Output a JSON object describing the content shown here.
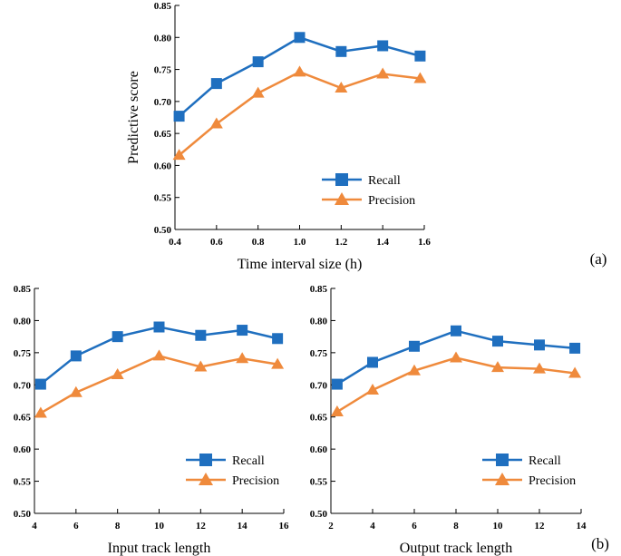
{
  "chart_data": [
    {
      "type": "line",
      "panel_label": "(a)",
      "xlabel": "Time interval size (h)",
      "ylabel": "Predictive score",
      "xlim": [
        0.4,
        1.6
      ],
      "ylim": [
        0.5,
        0.85
      ],
      "xticks": [
        "0.4",
        "0.6",
        "0.8",
        "1.0",
        "1.2",
        "1.4",
        "1.6"
      ],
      "yticks": [
        "0.50",
        "0.55",
        "0.60",
        "0.65",
        "0.70",
        "0.75",
        "0.80",
        "0.85"
      ],
      "x": [
        0.42,
        0.6,
        0.8,
        1.0,
        1.2,
        1.4,
        1.58
      ],
      "series": [
        {
          "name": "Recall",
          "marker": "square",
          "color": "#1f6fbf",
          "values": [
            0.677,
            0.728,
            0.762,
            0.8,
            0.778,
            0.787,
            0.771
          ]
        },
        {
          "name": "Precision",
          "marker": "triangle",
          "color": "#ef8a3c",
          "values": [
            0.616,
            0.665,
            0.713,
            0.746,
            0.721,
            0.743,
            0.736
          ]
        }
      ]
    },
    {
      "type": "line",
      "panel_label": "",
      "xlabel": "Input track length",
      "ylabel": "",
      "xlim": [
        4,
        16
      ],
      "ylim": [
        0.5,
        0.85
      ],
      "xticks": [
        "4",
        "6",
        "8",
        "10",
        "12",
        "14",
        "16"
      ],
      "yticks": [
        "0.50",
        "0.55",
        "0.60",
        "0.65",
        "0.70",
        "0.75",
        "0.80",
        "0.85"
      ],
      "x": [
        4.3,
        6,
        8,
        10,
        12,
        14,
        15.7
      ],
      "series": [
        {
          "name": "Recall",
          "marker": "square",
          "color": "#1f6fbf",
          "values": [
            0.701,
            0.745,
            0.775,
            0.79,
            0.777,
            0.785,
            0.772
          ]
        },
        {
          "name": "Precision",
          "marker": "triangle",
          "color": "#ef8a3c",
          "values": [
            0.656,
            0.688,
            0.716,
            0.745,
            0.728,
            0.741,
            0.732
          ]
        }
      ]
    },
    {
      "type": "line",
      "panel_label": "(b)",
      "xlabel": "Output track length",
      "ylabel": "",
      "xlim": [
        2,
        14
      ],
      "ylim": [
        0.5,
        0.85
      ],
      "xticks": [
        "2",
        "4",
        "6",
        "8",
        "10",
        "12",
        "14"
      ],
      "yticks": [
        "0.50",
        "0.55",
        "0.60",
        "0.65",
        "0.70",
        "0.75",
        "0.80",
        "0.85"
      ],
      "x": [
        2.3,
        4,
        6,
        8,
        10,
        12,
        13.7
      ],
      "series": [
        {
          "name": "Recall",
          "marker": "square",
          "color": "#1f6fbf",
          "values": [
            0.701,
            0.735,
            0.76,
            0.784,
            0.768,
            0.762,
            0.757
          ]
        },
        {
          "name": "Precision",
          "marker": "triangle",
          "color": "#ef8a3c",
          "values": [
            0.658,
            0.692,
            0.722,
            0.742,
            0.727,
            0.725,
            0.718
          ]
        }
      ]
    }
  ]
}
